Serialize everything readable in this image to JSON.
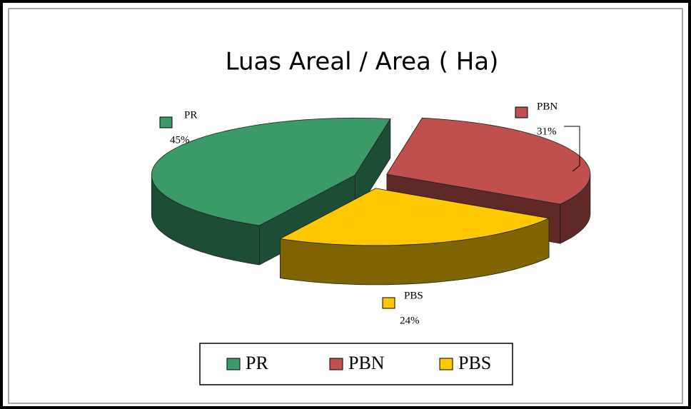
{
  "chart_data": {
    "type": "pie3d",
    "title": "Luas Areal / Area ( Ha)",
    "categories": [
      "PR",
      "PBN",
      "PBS"
    ],
    "values": [
      45,
      31,
      24
    ],
    "value_labels": [
      "45%",
      "31%",
      "24%"
    ],
    "colors": [
      "#3a9a68",
      "#c0504d",
      "#ffc800"
    ]
  }
}
